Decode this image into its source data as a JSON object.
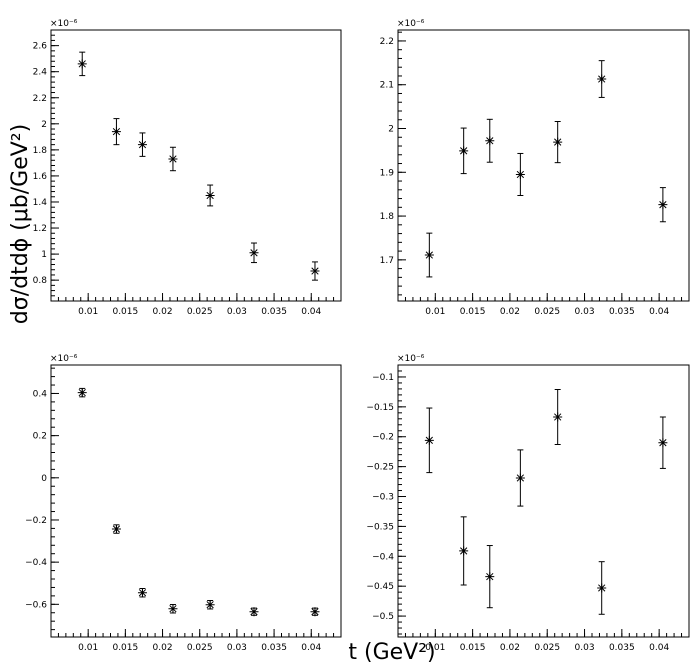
{
  "global": {
    "ylabel": "dσ/dtdϕ (μb/GeV²)",
    "xlabel": "t (GeV²)"
  },
  "chart_data": [
    {
      "type": "scatter",
      "multiplier": "×10⁻⁶",
      "xlim": [
        0.005,
        0.044
      ],
      "ylim": [
        0.64,
        2.72
      ],
      "xticks": [
        0.01,
        0.015,
        0.02,
        0.025,
        0.03,
        0.035,
        0.04
      ],
      "xtick_labels": [
        "0.01",
        "0.015",
        "0.02",
        "0.025",
        "0.03",
        "0.035",
        "0.04"
      ],
      "yticks": [
        0.8,
        1,
        1.2,
        1.4,
        1.6,
        1.8,
        2,
        2.2,
        2.4,
        2.6
      ],
      "ytick_labels": [
        "0.8",
        "1",
        "1.2",
        "1.4",
        "1.6",
        "1.8",
        "2",
        "2.2",
        "2.4",
        "2.6"
      ],
      "points": [
        {
          "x": 0.0092,
          "y": 2.46,
          "err": 0.09
        },
        {
          "x": 0.0138,
          "y": 1.94,
          "err": 0.1
        },
        {
          "x": 0.0173,
          "y": 1.84,
          "err": 0.09
        },
        {
          "x": 0.0214,
          "y": 1.73,
          "err": 0.09
        },
        {
          "x": 0.0264,
          "y": 1.45,
          "err": 0.08
        },
        {
          "x": 0.0323,
          "y": 1.01,
          "err": 0.075
        },
        {
          "x": 0.0405,
          "y": 0.87,
          "err": 0.07
        }
      ]
    },
    {
      "type": "scatter",
      "multiplier": "×10⁻⁶",
      "xlim": [
        0.005,
        0.044
      ],
      "ylim": [
        1.606,
        2.225
      ],
      "xticks": [
        0.01,
        0.015,
        0.02,
        0.025,
        0.03,
        0.035,
        0.04
      ],
      "xtick_labels": [
        "0.01",
        "0.015",
        "0.02",
        "0.025",
        "0.03",
        "0.035",
        "0.04"
      ],
      "yticks": [
        1.7,
        1.8,
        1.9,
        2,
        2.1,
        2.2
      ],
      "ytick_labels": [
        "1.7",
        "1.8",
        "1.9",
        "2",
        "2.1",
        "2.2"
      ],
      "points": [
        {
          "x": 0.0092,
          "y": 1.711,
          "err": 0.05
        },
        {
          "x": 0.0138,
          "y": 1.949,
          "err": 0.052
        },
        {
          "x": 0.0173,
          "y": 1.972,
          "err": 0.049
        },
        {
          "x": 0.0214,
          "y": 1.895,
          "err": 0.048
        },
        {
          "x": 0.0264,
          "y": 1.969,
          "err": 0.047
        },
        {
          "x": 0.0323,
          "y": 2.113,
          "err": 0.042
        },
        {
          "x": 0.0405,
          "y": 1.826,
          "err": 0.039
        }
      ]
    },
    {
      "type": "scatter",
      "multiplier": "×10⁻⁶",
      "xlim": [
        0.005,
        0.044
      ],
      "ylim": [
        -0.755,
        0.535
      ],
      "xticks": [
        0.01,
        0.015,
        0.02,
        0.025,
        0.03,
        0.035,
        0.04
      ],
      "xtick_labels": [
        "0.01",
        "0.015",
        "0.02",
        "0.025",
        "0.03",
        "0.035",
        "0.04"
      ],
      "yticks": [
        -0.6,
        -0.4,
        -0.2,
        0,
        0.2,
        0.4
      ],
      "ytick_labels": [
        "−0.6",
        "−0.4",
        "−0.2",
        "0",
        "0.2",
        "0.4"
      ],
      "points": [
        {
          "x": 0.0092,
          "y": 0.404,
          "err": 0.02
        },
        {
          "x": 0.0138,
          "y": -0.243,
          "err": 0.02
        },
        {
          "x": 0.0173,
          "y": -0.545,
          "err": 0.02
        },
        {
          "x": 0.0214,
          "y": -0.621,
          "err": 0.02
        },
        {
          "x": 0.0264,
          "y": -0.602,
          "err": 0.02
        },
        {
          "x": 0.0323,
          "y": -0.635,
          "err": 0.017
        },
        {
          "x": 0.0405,
          "y": -0.635,
          "err": 0.017
        }
      ]
    },
    {
      "type": "scatter",
      "multiplier": "×10⁻⁶",
      "xlim": [
        0.005,
        0.044
      ],
      "ylim": [
        -0.535,
        -0.08
      ],
      "xticks": [
        0.01,
        0.015,
        0.02,
        0.025,
        0.03,
        0.035,
        0.04
      ],
      "xtick_labels": [
        "0.01",
        "0.015",
        "0.02",
        "0.025",
        "0.03",
        "0.035",
        "0.04"
      ],
      "yticks": [
        -0.5,
        -0.45,
        -0.4,
        -0.35,
        -0.3,
        -0.25,
        -0.2,
        -0.15,
        -0.1
      ],
      "ytick_labels": [
        "−0.5",
        "−0.45",
        "−0.4",
        "−0.35",
        "−0.3",
        "−0.25",
        "−0.2",
        "−0.15",
        "−0.1"
      ],
      "points": [
        {
          "x": 0.0092,
          "y": -0.206,
          "err": 0.054
        },
        {
          "x": 0.0138,
          "y": -0.391,
          "err": 0.057
        },
        {
          "x": 0.0173,
          "y": -0.434,
          "err": 0.052
        },
        {
          "x": 0.0214,
          "y": -0.269,
          "err": 0.047
        },
        {
          "x": 0.0264,
          "y": -0.167,
          "err": 0.046
        },
        {
          "x": 0.0323,
          "y": -0.453,
          "err": 0.044
        },
        {
          "x": 0.0405,
          "y": -0.21,
          "err": 0.043
        }
      ]
    }
  ]
}
